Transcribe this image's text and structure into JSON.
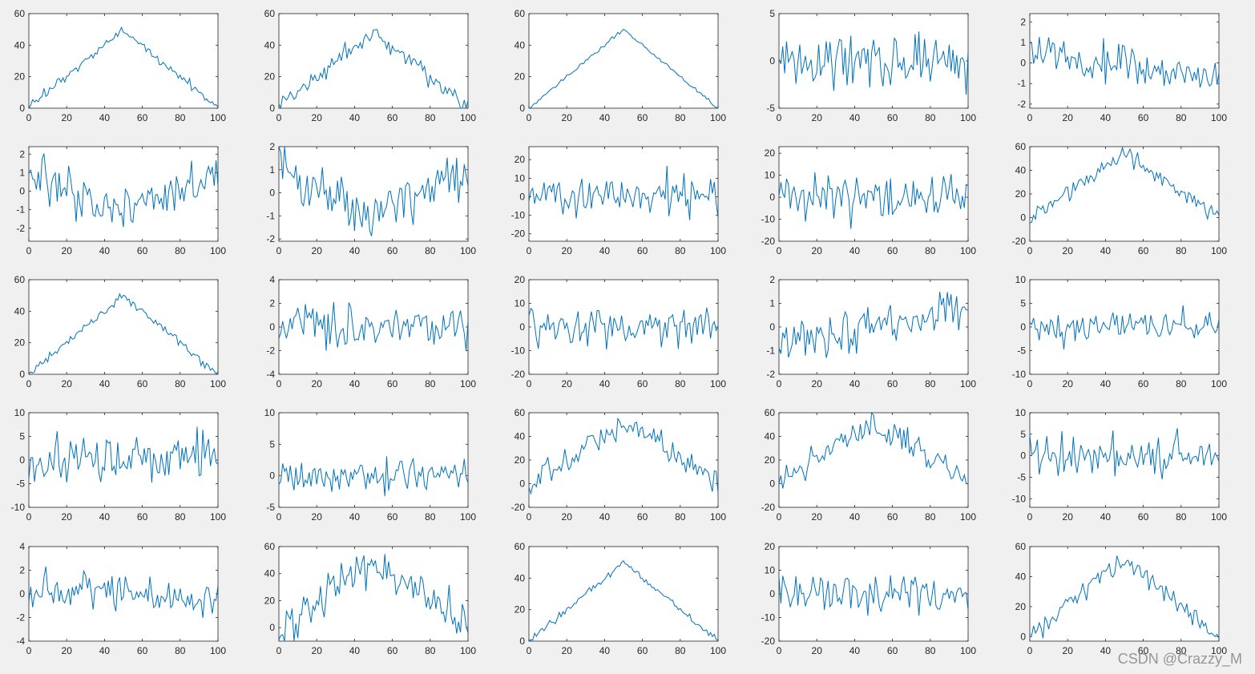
{
  "watermark": "CSDN @Crazzy_M",
  "colors": {
    "line": "#0072BD",
    "axes": "#262626",
    "plot_bg": "#ffffff",
    "figure_bg": "#f0f0f0"
  },
  "chart_data": [
    {
      "type": "line",
      "kind": "tri",
      "amp": 50,
      "noise": 1.5,
      "seed": 11,
      "xlim": [
        0,
        100
      ],
      "ylim": [
        0,
        60
      ],
      "yticks": [
        0,
        20,
        40,
        60
      ],
      "xticks": [
        0,
        20,
        40,
        60,
        80,
        100
      ]
    },
    {
      "type": "line",
      "kind": "tri",
      "amp": 49,
      "noise": 3,
      "seed": 12,
      "xlim": [
        0,
        100
      ],
      "ylim": [
        0,
        60
      ],
      "yticks": [
        0,
        20,
        40,
        60
      ],
      "xticks": [
        0,
        20,
        40,
        60,
        80,
        100
      ]
    },
    {
      "type": "line",
      "kind": "tri",
      "amp": 50,
      "noise": 0.6,
      "seed": 13,
      "xlim": [
        0,
        100
      ],
      "ylim": [
        0,
        60
      ],
      "yticks": [
        0,
        20,
        40,
        60
      ],
      "xticks": [
        0,
        20,
        40,
        60,
        80,
        100
      ]
    },
    {
      "type": "line",
      "kind": "noise",
      "amp": 2.2,
      "seed": 14,
      "xlim": [
        0,
        100
      ],
      "ylim": [
        -5,
        5
      ],
      "yticks": [
        -5,
        0,
        5
      ],
      "xticks": [
        0,
        20,
        40,
        60,
        80,
        100
      ]
    },
    {
      "type": "line",
      "kind": "noise",
      "amp": 0.9,
      "trend": 0.6,
      "seed": 15,
      "xlim": [
        0,
        100
      ],
      "ylim": [
        -2.2,
        2.4
      ],
      "yticks": [
        -2,
        -1,
        0,
        1,
        2
      ],
      "xticks": [
        0,
        20,
        40,
        60,
        80,
        100
      ]
    },
    {
      "type": "line",
      "kind": "valley",
      "amp": 1.8,
      "noise": 0.7,
      "seed": 21,
      "xlim": [
        0,
        100
      ],
      "ylim": [
        -2.7,
        2.4
      ],
      "yticks": [
        -2,
        -1,
        0,
        1,
        2
      ],
      "xticks": [
        0,
        20,
        40,
        60,
        80,
        100
      ]
    },
    {
      "type": "line",
      "kind": "valley",
      "amp": 2.2,
      "noise": 0.6,
      "seed": 22,
      "xlim": [
        0,
        100
      ],
      "ylim": [
        -2.1,
        2
      ],
      "yticks": [
        -2,
        -1,
        0,
        1,
        2
      ],
      "xticks": [
        0,
        20,
        40,
        60,
        80,
        100
      ]
    },
    {
      "type": "line",
      "kind": "noise",
      "amp": 9,
      "seed": 23,
      "xlim": [
        0,
        100
      ],
      "ylim": [
        -24,
        27
      ],
      "yticks": [
        -20,
        -10,
        0,
        10,
        20
      ],
      "xticks": [
        0,
        20,
        40,
        60,
        80,
        100
      ]
    },
    {
      "type": "line",
      "kind": "noise",
      "amp": 8,
      "seed": 24,
      "xlim": [
        0,
        100
      ],
      "ylim": [
        -20,
        23
      ],
      "yticks": [
        -20,
        -10,
        0,
        10,
        20
      ],
      "xticks": [
        0,
        20,
        40,
        60,
        80,
        100
      ]
    },
    {
      "type": "line",
      "kind": "tri",
      "amp": 55,
      "noise": 4,
      "seed": 25,
      "xlim": [
        0,
        100
      ],
      "ylim": [
        -20,
        60
      ],
      "yticks": [
        -20,
        0,
        20,
        40,
        60
      ],
      "xticks": [
        0,
        20,
        40,
        60,
        80,
        100
      ]
    },
    {
      "type": "line",
      "kind": "tri",
      "amp": 50,
      "noise": 1.5,
      "seed": 31,
      "xlim": [
        0,
        100
      ],
      "ylim": [
        0,
        60
      ],
      "yticks": [
        0,
        20,
        40,
        60
      ],
      "xticks": [
        0,
        20,
        40,
        60,
        80,
        100
      ]
    },
    {
      "type": "line",
      "kind": "noise",
      "amp": 1.5,
      "seed": 32,
      "xlim": [
        0,
        100
      ],
      "ylim": [
        -4,
        4
      ],
      "yticks": [
        -4,
        -2,
        0,
        2,
        4
      ],
      "xticks": [
        0,
        20,
        40,
        60,
        80,
        100
      ]
    },
    {
      "type": "line",
      "kind": "noise",
      "amp": 6,
      "seed": 33,
      "xlim": [
        0,
        100
      ],
      "ylim": [
        -20,
        20
      ],
      "yticks": [
        -20,
        -10,
        0,
        10,
        20
      ],
      "xticks": [
        0,
        20,
        40,
        60,
        80,
        100
      ]
    },
    {
      "type": "line",
      "kind": "noise",
      "amp": 0.7,
      "trend": -0.9,
      "seed": 34,
      "xlim": [
        0,
        100
      ],
      "ylim": [
        -2,
        2
      ],
      "yticks": [
        -2,
        -1,
        0,
        1,
        2
      ],
      "xticks": [
        0,
        20,
        40,
        60,
        80,
        100
      ]
    },
    {
      "type": "line",
      "kind": "noise",
      "amp": 3,
      "seed": 35,
      "xlim": [
        0,
        100
      ],
      "ylim": [
        -10,
        10
      ],
      "yticks": [
        -10,
        -5,
        0,
        5,
        10
      ],
      "xticks": [
        0,
        20,
        40,
        60,
        80,
        100
      ]
    },
    {
      "type": "line",
      "kind": "noise",
      "amp": 4,
      "seed": 41,
      "xlim": [
        0,
        100
      ],
      "ylim": [
        -10,
        10
      ],
      "yticks": [
        -10,
        -5,
        0,
        5,
        10
      ],
      "xticks": [
        0,
        20,
        40,
        60,
        80,
        100
      ]
    },
    {
      "type": "line",
      "kind": "noise",
      "amp": 2,
      "seed": 42,
      "xlim": [
        0,
        100
      ],
      "ylim": [
        -5,
        10
      ],
      "yticks": [
        -5,
        0,
        5,
        10
      ],
      "xticks": [
        0,
        20,
        40,
        60,
        80,
        100
      ]
    },
    {
      "type": "line",
      "kind": "tri",
      "amp": 52,
      "noise": 6,
      "seed": 43,
      "xlim": [
        0,
        100
      ],
      "ylim": [
        -20,
        60
      ],
      "yticks": [
        -20,
        0,
        20,
        40,
        60
      ],
      "xticks": [
        0,
        20,
        40,
        60,
        80,
        100
      ]
    },
    {
      "type": "line",
      "kind": "tri",
      "amp": 52,
      "noise": 6,
      "seed": 44,
      "xlim": [
        0,
        100
      ],
      "ylim": [
        -20,
        60
      ],
      "yticks": [
        -20,
        0,
        20,
        40,
        60
      ],
      "xticks": [
        0,
        20,
        40,
        60,
        80,
        100
      ]
    },
    {
      "type": "line",
      "kind": "noise",
      "amp": 3.5,
      "seed": 45,
      "xlim": [
        0,
        100
      ],
      "ylim": [
        -12,
        10
      ],
      "yticks": [
        -10,
        -5,
        0,
        5,
        10
      ],
      "xticks": [
        0,
        20,
        40,
        60,
        80,
        100
      ]
    },
    {
      "type": "line",
      "kind": "noise",
      "amp": 1.2,
      "trend": 0.6,
      "seed": 51,
      "xlim": [
        0,
        100
      ],
      "ylim": [
        -4,
        4
      ],
      "yticks": [
        -4,
        -2,
        0,
        2,
        4
      ],
      "xticks": [
        0,
        20,
        40,
        60,
        80,
        100
      ]
    },
    {
      "type": "line",
      "kind": "tri",
      "amp": 50,
      "noise": 8,
      "seed": 52,
      "xlim": [
        0,
        100
      ],
      "ylim": [
        -10,
        60
      ],
      "yticks": [
        0,
        20,
        40,
        60
      ],
      "xticks": [
        0,
        20,
        40,
        60,
        80,
        100
      ]
    },
    {
      "type": "line",
      "kind": "tri",
      "amp": 50,
      "noise": 1,
      "seed": 53,
      "xlim": [
        0,
        100
      ],
      "ylim": [
        0,
        60
      ],
      "yticks": [
        0,
        20,
        40,
        60
      ],
      "xticks": [
        0,
        20,
        40,
        60,
        80,
        100
      ]
    },
    {
      "type": "line",
      "kind": "noise",
      "amp": 7,
      "seed": 54,
      "xlim": [
        0,
        100
      ],
      "ylim": [
        -20,
        20
      ],
      "yticks": [
        -20,
        -10,
        0,
        10,
        20
      ],
      "xticks": [
        0,
        20,
        40,
        60,
        80,
        100
      ]
    },
    {
      "type": "line",
      "kind": "tri",
      "amp": 52,
      "noise": 4,
      "seed": 55,
      "xlim": [
        0,
        100
      ],
      "ylim": [
        -3,
        60
      ],
      "yticks": [
        0,
        20,
        40,
        60
      ],
      "xticks": [
        0,
        20,
        40,
        60,
        80,
        100
      ]
    }
  ]
}
